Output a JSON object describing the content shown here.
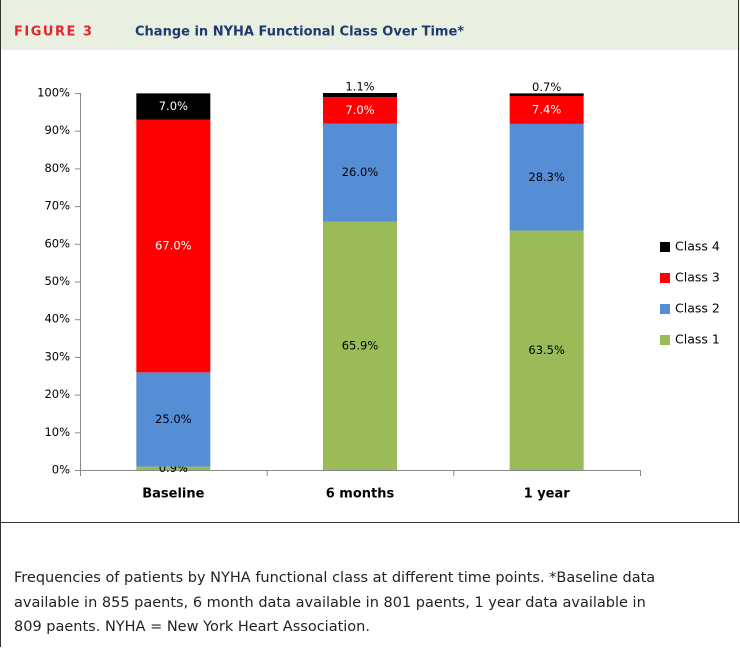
{
  "figure_label": "FIGURE 3",
  "chart_data": {
    "type": "stacked_bar",
    "title": "Change in NYHA Functional Class Over Time*",
    "categories": [
      "Baseline",
      "6 months",
      "1 year"
    ],
    "series": [
      {
        "name": "Class 1",
        "color": "#9bbb59",
        "values": [
          0.9,
          65.9,
          63.5
        ],
        "value_labels": [
          "0.9%",
          "65.9%",
          "63.5%"
        ]
      },
      {
        "name": "Class 2",
        "color": "#558ed5",
        "values": [
          25.0,
          26.0,
          28.3
        ],
        "value_labels": [
          "25.0%",
          "26.0%",
          "28.3%"
        ]
      },
      {
        "name": "Class 3",
        "color": "#ff0000",
        "values": [
          67.0,
          7.0,
          7.4
        ],
        "value_labels": [
          "67.0%",
          "7.0%",
          "7.4%"
        ]
      },
      {
        "name": "Class 4",
        "color": "#000000",
        "values": [
          7.0,
          1.1,
          0.7
        ],
        "value_labels": [
          "7.0%",
          "1.1%",
          "0.7%"
        ]
      }
    ],
    "ylim": [
      0,
      100
    ],
    "yticks": [
      {
        "value": 0,
        "label": "0%"
      },
      {
        "value": 10,
        "label": "10%"
      },
      {
        "value": 20,
        "label": "20%"
      },
      {
        "value": 30,
        "label": "30%"
      },
      {
        "value": 40,
        "label": "40%"
      },
      {
        "value": 50,
        "label": "50%"
      },
      {
        "value": 60,
        "label": "60%"
      },
      {
        "value": 70,
        "label": "70%"
      },
      {
        "value": 80,
        "label": "80%"
      },
      {
        "value": 90,
        "label": "90%"
      },
      {
        "value": 100,
        "label": "100%"
      }
    ],
    "legend": "right"
  },
  "caption": [
    "Frequencies of patients by NYHA functional class at different time points. *Baseline data",
    "available in 855 paents, 6 month data available in 801 paents, 1 year data available in",
    "809 paents. NYHA = New York Heart Association."
  ]
}
